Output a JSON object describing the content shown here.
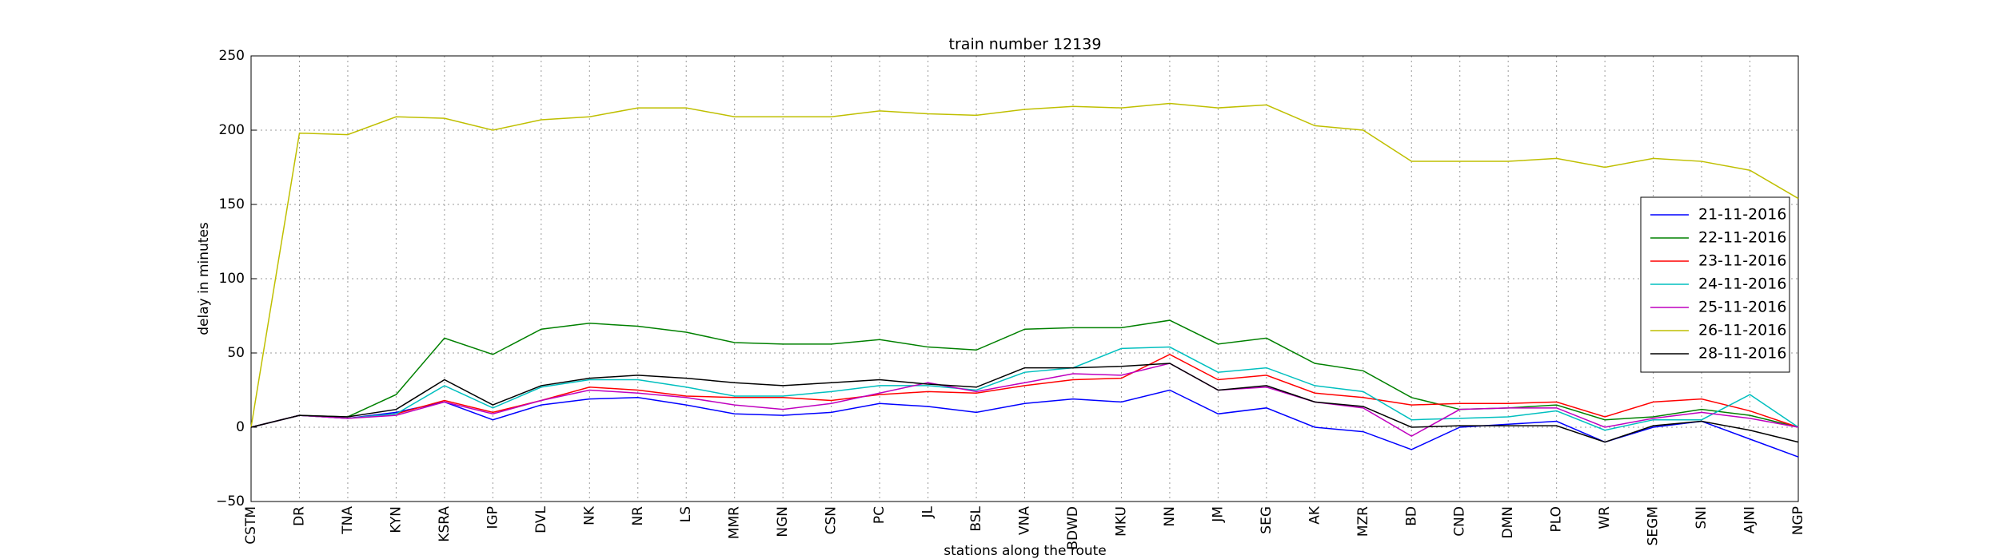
{
  "chart_data": {
    "type": "line",
    "title": "train number 12139",
    "y_label": "delay in minutes",
    "x_label": "stations along the route",
    "categories": [
      "CSTM",
      "DR",
      "TNA",
      "KYN",
      "KSRA",
      "IGP",
      "DVL",
      "NK",
      "NR",
      "LS",
      "MMR",
      "NGN",
      "CSN",
      "PC",
      "JL",
      "BSL",
      "VNA",
      "BDWD",
      "MKU",
      "NN",
      "JM",
      "SEG",
      "AK",
      "MZR",
      "BD",
      "CND",
      "DMN",
      "PLO",
      "WR",
      "SEGM",
      "SNI",
      "AJNI",
      "NGP"
    ],
    "ylim": [
      -50,
      250
    ],
    "yticks": [
      {
        "value": -50,
        "label": "−50"
      },
      0,
      50,
      100,
      150,
      200,
      250
    ],
    "grid": true,
    "legend": "right",
    "series": [
      {
        "name": "21-11-2016",
        "color": "#0000ff",
        "values": [
          0,
          8,
          6,
          10,
          17,
          5,
          15,
          19,
          20,
          15,
          9,
          8,
          10,
          16,
          14,
          10,
          16,
          19,
          17,
          25,
          9,
          13,
          0,
          -3,
          -15,
          0,
          2,
          4,
          -10,
          0,
          4,
          -8,
          -20
        ]
      },
      {
        "name": "22-11-2016",
        "color": "#008000",
        "values": [
          0,
          8,
          7,
          22,
          60,
          49,
          66,
          70,
          68,
          64,
          57,
          56,
          56,
          59,
          54,
          52,
          66,
          67,
          67,
          72,
          56,
          60,
          43,
          38,
          20,
          12,
          13,
          15,
          5,
          7,
          12,
          8,
          0
        ]
      },
      {
        "name": "23-11-2016",
        "color": "#ff0000",
        "values": [
          0,
          8,
          6,
          9,
          18,
          10,
          18,
          27,
          25,
          21,
          20,
          20,
          18,
          22,
          24,
          23,
          28,
          32,
          33,
          49,
          32,
          35,
          23,
          20,
          15,
          16,
          16,
          17,
          7,
          17,
          19,
          11,
          0
        ]
      },
      {
        "name": "24-11-2016",
        "color": "#00bfbf",
        "values": [
          0,
          8,
          6,
          9,
          28,
          13,
          27,
          32,
          32,
          27,
          21,
          21,
          24,
          28,
          28,
          25,
          37,
          40,
          53,
          54,
          37,
          40,
          28,
          24,
          5,
          6,
          7,
          11,
          -2,
          5,
          5,
          22,
          0
        ]
      },
      {
        "name": "25-11-2016",
        "color": "#bf00bf",
        "values": [
          0,
          8,
          6,
          8,
          17,
          9,
          18,
          25,
          23,
          20,
          15,
          12,
          16,
          23,
          30,
          24,
          30,
          36,
          35,
          43,
          25,
          27,
          17,
          13,
          -6,
          12,
          13,
          13,
          0,
          6,
          10,
          6,
          0
        ]
      },
      {
        "name": "26-11-2016",
        "color": "#bfbf00",
        "values": [
          0,
          198,
          197,
          209,
          208,
          200,
          207,
          209,
          215,
          215,
          209,
          209,
          209,
          213,
          211,
          210,
          214,
          216,
          215,
          218,
          215,
          217,
          203,
          200,
          179,
          179,
          179,
          181,
          175,
          181,
          179,
          173,
          154
        ]
      },
      {
        "name": "28-11-2016",
        "color": "#000000",
        "values": [
          0,
          8,
          7,
          12,
          32,
          15,
          28,
          33,
          35,
          33,
          30,
          28,
          30,
          32,
          29,
          27,
          40,
          40,
          41,
          43,
          25,
          28,
          17,
          14,
          0,
          1,
          1,
          1,
          -10,
          1,
          4,
          -2,
          -10
        ]
      }
    ]
  }
}
